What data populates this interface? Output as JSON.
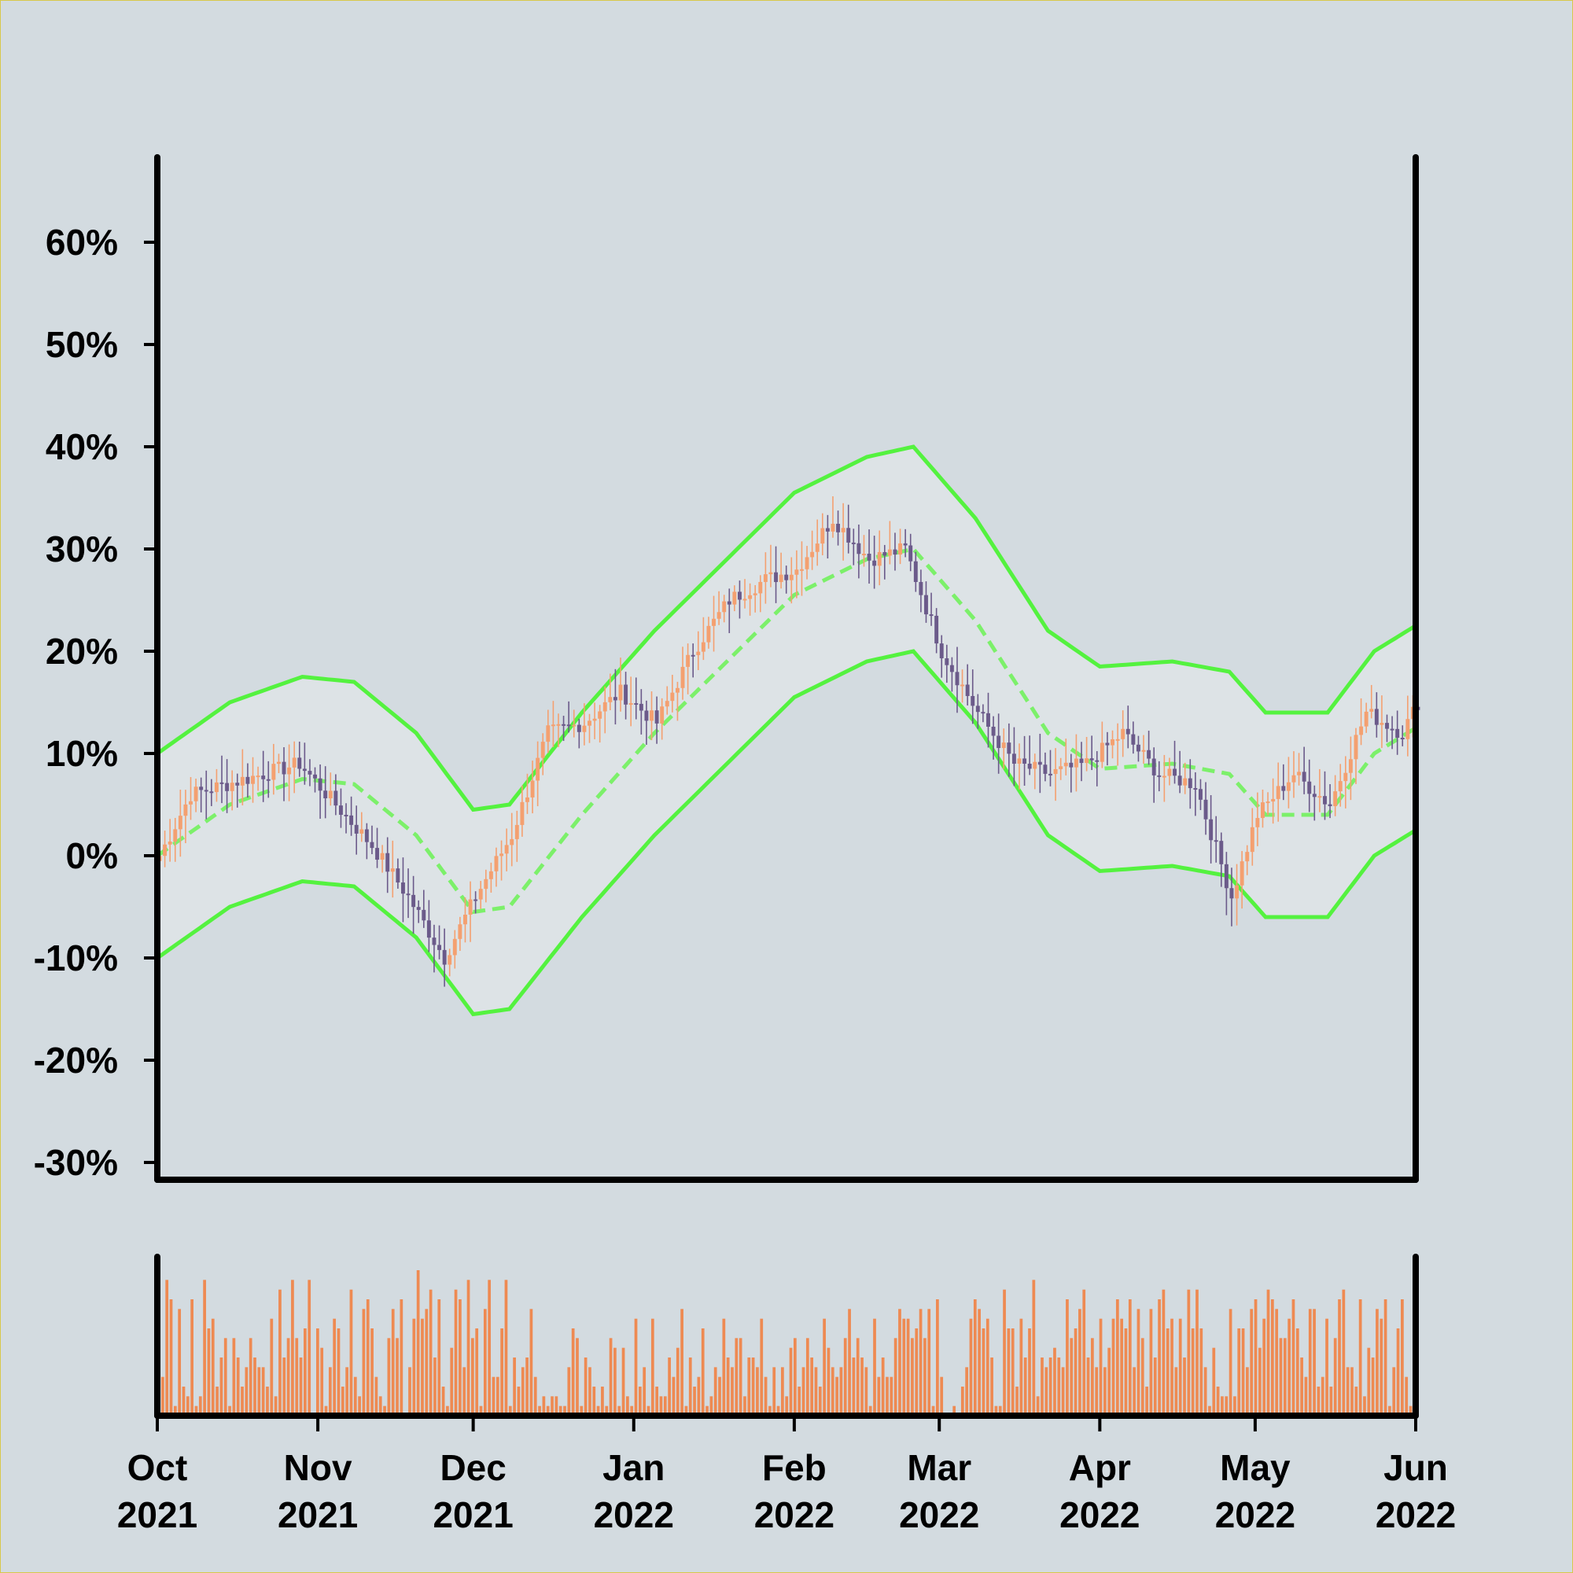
{
  "colors": {
    "background": "#d3dbe0",
    "band_fill": "#dde3e6",
    "band_line": "#54f23f",
    "middle_line": "#7cf06a",
    "up_candle": "#f4a070",
    "down_candle": "#6b5a8a",
    "volume_bar": "#ee8a52",
    "axis": "#000000"
  },
  "chart_data": {
    "type": "candlestick",
    "title": "",
    "xlabel": "",
    "ylabel": "",
    "x_range": [
      "2021-10-01",
      "2022-06-01"
    ],
    "ylim": [
      -30,
      68
    ],
    "y_unit": "%",
    "grid": false,
    "legend": "none",
    "y_ticks": [
      "60%",
      "50%",
      "40%",
      "30%",
      "20%",
      "10%",
      "0%",
      "-10%",
      "-20%",
      "-30%"
    ],
    "y_tick_values": [
      60,
      50,
      40,
      30,
      20,
      10,
      0,
      -10,
      -20,
      -30
    ],
    "x_ticks": [
      {
        "date": "2021-10-01",
        "month": "Oct",
        "year": "2021"
      },
      {
        "date": "2021-11-01",
        "month": "Nov",
        "year": "2021"
      },
      {
        "date": "2021-12-01",
        "month": "Dec",
        "year": "2021"
      },
      {
        "date": "2022-01-01",
        "month": "Jan",
        "year": "2022"
      },
      {
        "date": "2022-02-01",
        "month": "Feb",
        "year": "2022"
      },
      {
        "date": "2022-03-01",
        "month": "Mar",
        "year": "2022"
      },
      {
        "date": "2022-04-01",
        "month": "Apr",
        "year": "2022"
      },
      {
        "date": "2022-05-01",
        "month": "May",
        "year": "2022"
      },
      {
        "date": "2022-06-01",
        "month": "Jun",
        "year": "2022"
      }
    ],
    "close_anchors": [
      [
        "2021-10-01",
        0
      ],
      [
        "2021-10-07",
        6
      ],
      [
        "2021-10-14",
        7
      ],
      [
        "2021-10-21",
        8
      ],
      [
        "2021-10-28",
        9
      ],
      [
        "2021-11-04",
        5
      ],
      [
        "2021-11-11",
        1
      ],
      [
        "2021-11-18",
        -4
      ],
      [
        "2021-11-25",
        -10
      ],
      [
        "2021-12-01",
        -4
      ],
      [
        "2021-12-08",
        2
      ],
      [
        "2021-12-15",
        12
      ],
      [
        "2021-12-22",
        13
      ],
      [
        "2021-12-29",
        16
      ],
      [
        "2022-01-05",
        13
      ],
      [
        "2022-01-12",
        20
      ],
      [
        "2022-01-19",
        25
      ],
      [
        "2022-01-26",
        27
      ],
      [
        "2022-02-01",
        28
      ],
      [
        "2022-02-08",
        33
      ],
      [
        "2022-02-15",
        29
      ],
      [
        "2022-02-22",
        30
      ],
      [
        "2022-03-01",
        20
      ],
      [
        "2022-03-08",
        14
      ],
      [
        "2022-03-15",
        9
      ],
      [
        "2022-03-22",
        8
      ],
      [
        "2022-03-29",
        9
      ],
      [
        "2022-04-05",
        12
      ],
      [
        "2022-04-12",
        8
      ],
      [
        "2022-04-19",
        7
      ],
      [
        "2022-04-26",
        -4
      ],
      [
        "2022-05-01",
        4
      ],
      [
        "2022-05-08",
        8
      ],
      [
        "2022-05-15",
        5
      ],
      [
        "2022-05-22",
        14
      ],
      [
        "2022-05-29",
        12
      ],
      [
        "2022-06-01",
        15
      ]
    ],
    "band_middle_anchors": [
      [
        "2021-10-01",
        0
      ],
      [
        "2021-10-15",
        5
      ],
      [
        "2021-10-29",
        7.5
      ],
      [
        "2021-11-08",
        7
      ],
      [
        "2021-11-20",
        2
      ],
      [
        "2021-12-01",
        -5.5
      ],
      [
        "2021-12-08",
        -5
      ],
      [
        "2021-12-22",
        4
      ],
      [
        "2022-01-05",
        12
      ],
      [
        "2022-01-19",
        19
      ],
      [
        "2022-02-01",
        25.5
      ],
      [
        "2022-02-15",
        29
      ],
      [
        "2022-02-24",
        30
      ],
      [
        "2022-03-08",
        23
      ],
      [
        "2022-03-22",
        12
      ],
      [
        "2022-04-01",
        8.5
      ],
      [
        "2022-04-15",
        9
      ],
      [
        "2022-04-26",
        8
      ],
      [
        "2022-05-03",
        4
      ],
      [
        "2022-05-15",
        4
      ],
      [
        "2022-05-24",
        10
      ],
      [
        "2022-06-01",
        12.5
      ]
    ],
    "band_width": 10,
    "volume": {
      "bars": [
        4,
        14,
        12,
        1,
        11,
        3,
        2,
        12,
        1,
        2,
        14,
        9,
        10,
        3,
        6,
        8,
        1,
        8,
        6,
        3,
        5,
        8,
        6,
        5,
        5,
        3,
        10,
        2,
        13,
        6,
        8,
        14,
        8,
        6,
        9,
        14,
        0,
        9,
        7,
        1,
        5,
        10,
        9,
        3,
        5,
        13,
        4,
        2,
        11,
        12,
        9,
        4,
        2,
        1,
        8,
        11,
        8,
        12,
        0,
        5,
        10,
        15,
        10,
        11,
        13,
        6,
        12,
        3,
        1,
        7,
        13,
        12,
        5,
        14,
        8,
        9,
        1,
        11,
        14,
        4,
        4,
        9,
        14,
        1,
        6,
        3,
        5,
        6,
        11,
        4,
        1,
        2,
        1,
        2,
        2,
        1,
        1,
        5,
        9,
        8,
        1,
        6,
        5,
        3,
        1,
        3,
        1,
        8,
        7,
        1,
        7,
        2,
        1,
        10,
        3,
        5,
        1,
        10,
        3,
        2,
        2,
        6,
        4,
        7,
        11,
        1,
        6,
        3,
        4,
        9,
        1,
        2,
        5,
        4,
        10,
        6,
        5,
        8,
        8,
        2,
        6,
        6,
        5,
        10,
        4,
        1,
        5,
        1,
        5,
        2,
        7,
        8,
        3,
        5,
        8,
        6,
        5,
        3,
        10,
        7,
        5,
        4,
        5,
        8,
        11,
        6,
        8,
        6,
        5,
        1,
        10,
        4,
        6,
        4,
        4,
        8,
        11,
        10,
        10,
        8,
        9,
        11,
        8,
        11,
        1,
        12,
        4,
        0,
        0,
        1,
        0,
        3,
        5,
        10,
        12,
        11,
        9,
        10,
        6,
        1,
        1,
        13,
        9,
        9,
        3,
        10,
        6,
        9,
        14,
        2,
        6,
        5,
        6,
        7,
        6,
        5,
        12,
        8,
        9,
        11,
        13,
        6,
        8,
        5,
        10,
        5,
        7,
        10,
        12,
        10,
        9,
        12,
        5,
        11,
        8,
        3,
        11,
        6,
        12,
        13,
        9,
        10,
        5,
        10,
        6,
        13,
        9,
        13,
        9,
        5,
        1,
        7,
        3,
        2,
        2,
        11,
        2,
        9,
        9,
        5,
        11,
        12,
        7,
        10,
        13,
        12,
        11,
        8,
        8,
        10,
        12,
        9,
        6,
        4,
        11,
        11,
        3,
        4,
        10,
        3,
        8,
        12,
        13,
        5,
        5,
        3,
        12,
        2,
        7,
        6,
        11,
        10,
        12,
        1,
        5,
        9,
        12,
        4,
        1
      ]
    }
  }
}
